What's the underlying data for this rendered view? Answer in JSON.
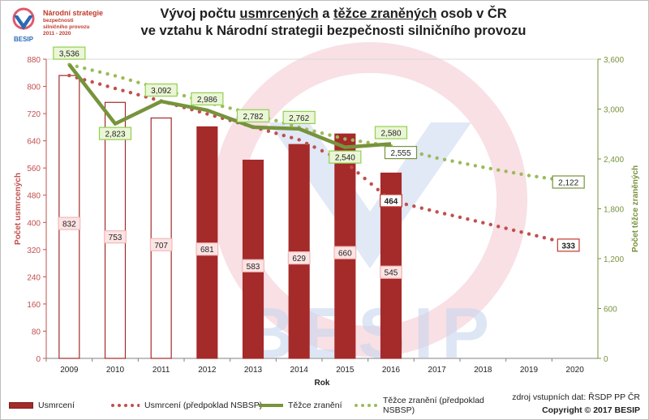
{
  "logo": {
    "name_line1": "Národní strategie",
    "name_line2": "bezpečnosti",
    "name_line3": "silničního provozu",
    "years": "2011 - 2020",
    "brand": "BESIP"
  },
  "title": {
    "part1": "Vývoj počtu ",
    "part2": "usmrcených",
    "part3": " a ",
    "part4": "těžce zraněných",
    "part5": " osob v ČR",
    "line2": "ve vztahu k Národní strategii bezpečnosti silničního provozu"
  },
  "watermark": "BESIP",
  "source": "zdroj vstupních dat: ŘSDP PP ČR",
  "copyright": "Copyright © 2017 BESIP",
  "colors": {
    "bar_fill": "#a52a2a",
    "bar_outline": "#a52a2a",
    "line_green": "#77933c",
    "dotted_red": "#c0504d",
    "dotted_green": "#9bbb59",
    "left_axis_text": "#c0504d",
    "right_axis_text": "#77933c",
    "watermark": "#c8d6ee",
    "watermark_pink": "#f3c7cf"
  },
  "chart_data": {
    "type": "bar",
    "categories": [
      "2009",
      "2010",
      "2011",
      "2012",
      "2013",
      "2014",
      "2015",
      "2016",
      "2017",
      "2018",
      "2019",
      "2020"
    ],
    "xlabel": "Rok",
    "ylabel_left": "Počet usmrcených",
    "ylabel_right": "Počet těžce zraněných",
    "ylim_left": [
      0,
      880
    ],
    "yticks_left": [
      "0",
      "80",
      "160",
      "240",
      "320",
      "400",
      "480",
      "560",
      "640",
      "720",
      "800",
      "880"
    ],
    "ylim_right": [
      0,
      3600
    ],
    "yticks_right": [
      "0",
      "600",
      "1,200",
      "1,800",
      "2,400",
      "3,000",
      "3,600"
    ],
    "series": [
      {
        "name": "Usmrcení",
        "type": "bar",
        "axis": "left",
        "values": [
          832,
          753,
          707,
          681,
          583,
          629,
          660,
          545,
          null,
          null,
          null,
          null
        ],
        "labels": [
          "832",
          "753",
          "707",
          "681",
          "583",
          "629",
          "660",
          "545",
          "",
          "",
          "",
          ""
        ],
        "hollow": [
          true,
          true,
          true,
          false,
          false,
          false,
          false,
          false
        ]
      },
      {
        "name": "Usmrcení (předpoklad NSBSP)",
        "type": "dotted",
        "axis": "left",
        "values": [
          832,
          794,
          757,
          719,
          681,
          643,
          578,
          464,
          431,
          399,
          366,
          333
        ],
        "labels": [
          "",
          "",
          "",
          "",
          "",
          "",
          "",
          "464",
          "",
          "",
          "",
          "333"
        ]
      },
      {
        "name": "Těžce zranění",
        "type": "line",
        "axis": "right",
        "values": [
          3536,
          2823,
          3092,
          2986,
          2782,
          2762,
          2540,
          2580,
          null,
          null,
          null,
          null
        ],
        "labels": [
          "3,536",
          "2,823",
          "3,092",
          "2,986",
          "2,782",
          "2,762",
          "2,540",
          "2,580",
          "",
          "",
          "",
          ""
        ]
      },
      {
        "name": "Těžce zranění (předpoklad NSBSP)",
        "type": "dotted",
        "axis": "right",
        "values": [
          3536,
          3400,
          3240,
          3080,
          2940,
          2780,
          2640,
          2555,
          2410,
          2300,
          2200,
          2122
        ],
        "labels": [
          "",
          "",
          "",
          "",
          "",
          "",
          "",
          "2,555",
          "",
          "",
          "",
          "2,122"
        ]
      }
    ]
  }
}
